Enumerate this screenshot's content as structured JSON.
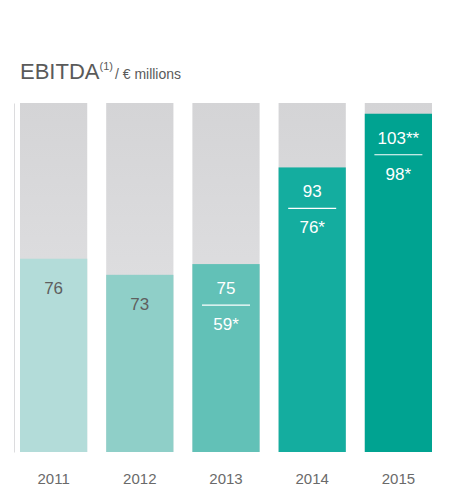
{
  "chart_data": {
    "type": "bar",
    "title": "EBITDA",
    "title_superscript": "(1)",
    "subtitle": "/ € millions",
    "categories": [
      "2011",
      "2012",
      "2013",
      "2014",
      "2015"
    ],
    "values": [
      76,
      73,
      75,
      93,
      103
    ],
    "value_labels": [
      "76",
      "73",
      "75",
      "93",
      "103**"
    ],
    "adjusted_values": [
      null,
      null,
      59,
      76,
      98
    ],
    "adjusted_value_labels": [
      null,
      null,
      "59*",
      "76*",
      "98*"
    ],
    "colors": [
      "#b3dcd9",
      "#8fcfc8",
      "#62c1b7",
      "#14ad9f",
      "#00a391"
    ],
    "ylim": [
      40,
      105
    ],
    "yticks": [],
    "tick_labels": "x",
    "data_labels": true,
    "grid": false
  }
}
